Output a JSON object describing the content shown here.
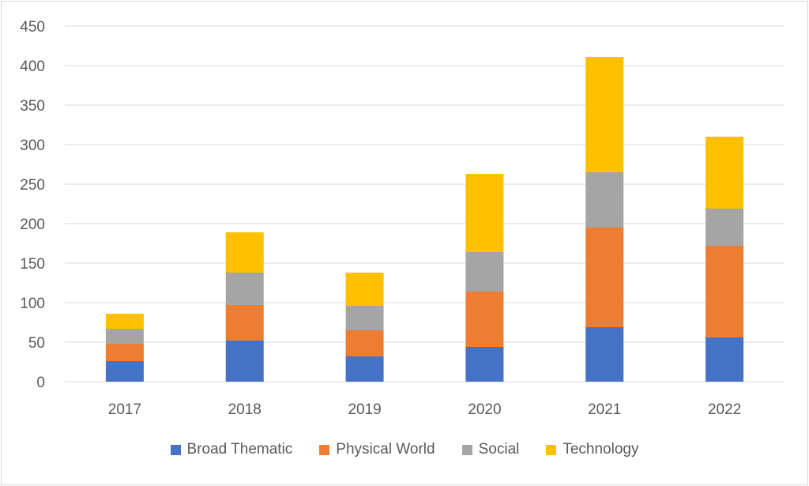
{
  "chart_data": {
    "type": "bar",
    "stacked": true,
    "categories": [
      "2017",
      "2018",
      "2019",
      "2020",
      "2021",
      "2022"
    ],
    "series": [
      {
        "name": "Broad Thematic",
        "color": "#4472C4",
        "values": [
          26,
          52,
          32,
          44,
          69,
          56
        ]
      },
      {
        "name": "Physical World",
        "color": "#ED7D31",
        "values": [
          22,
          45,
          33,
          70,
          126,
          116
        ]
      },
      {
        "name": "Social",
        "color": "#A5A5A5",
        "values": [
          19,
          41,
          31,
          50,
          70,
          47
        ]
      },
      {
        "name": "Technology",
        "color": "#FFC000",
        "values": [
          19,
          51,
          42,
          99,
          146,
          91
        ]
      }
    ],
    "ylim": [
      0,
      450
    ],
    "yticks": [
      0,
      50,
      100,
      150,
      200,
      250,
      300,
      350,
      400,
      450
    ],
    "grid": true,
    "legend_position": "bottom"
  }
}
